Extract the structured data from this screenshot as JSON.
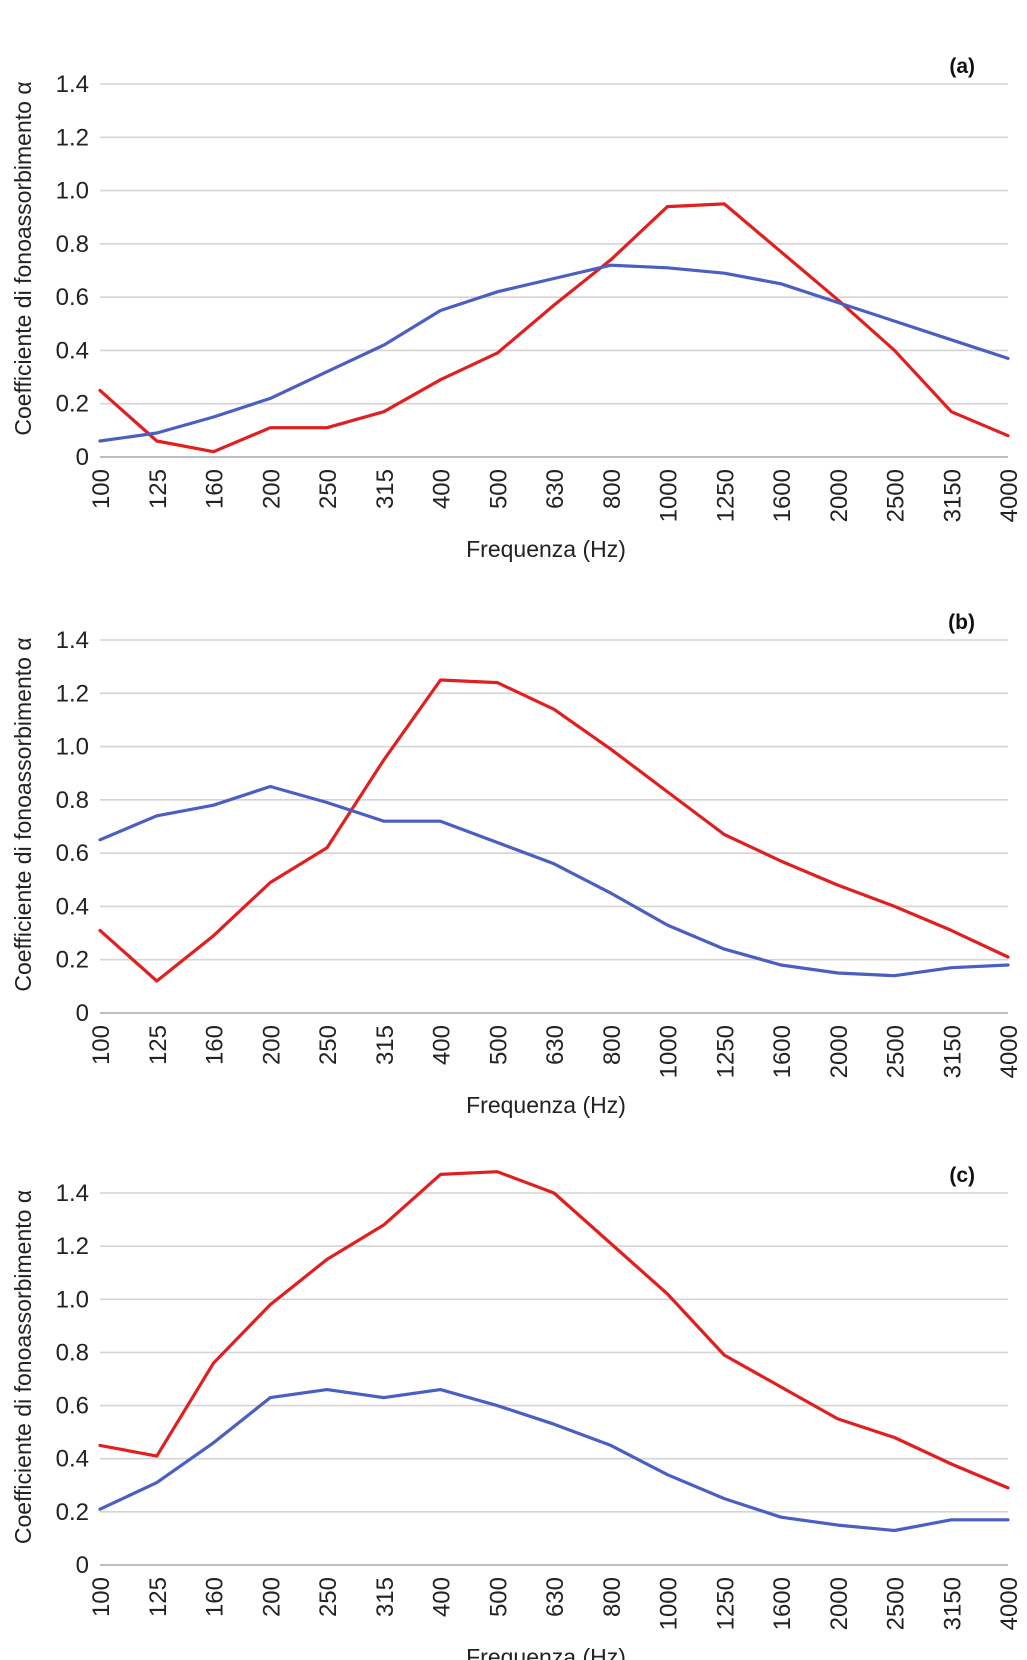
{
  "chart_data": [
    {
      "type": "line",
      "panel_label": "(a)",
      "xlabel": "Frequenza (Hz)",
      "ylabel": "Coefficiente di fonoassorbimento α",
      "categories": [
        "100",
        "125",
        "160",
        "200",
        "250",
        "315",
        "400",
        "500",
        "630",
        "800",
        "1000",
        "1250",
        "1600",
        "2000",
        "2500",
        "3150",
        "4000"
      ],
      "ylim": [
        0,
        1.4
      ],
      "yticks": [
        "0",
        "0.2",
        "0.4",
        "0.6",
        "0.8",
        "1.0",
        "1.2",
        "1.4"
      ],
      "grid": true,
      "series": [
        {
          "color": "#e02020",
          "values": [
            0.25,
            0.06,
            0.02,
            0.11,
            0.11,
            0.17,
            0.29,
            0.39,
            0.57,
            0.74,
            0.94,
            0.95,
            0.77,
            0.59,
            0.4,
            0.17,
            0.08
          ]
        },
        {
          "color": "#4a5fc1",
          "values": [
            0.06,
            0.09,
            0.15,
            0.22,
            0.32,
            0.42,
            0.55,
            0.62,
            0.67,
            0.72,
            0.71,
            0.69,
            0.65,
            0.58,
            0.51,
            0.44,
            0.37
          ]
        }
      ]
    },
    {
      "type": "line",
      "panel_label": "(b)",
      "xlabel": "Frequenza (Hz)",
      "ylabel": "Coefficiente di fonoassorbimento α",
      "categories": [
        "100",
        "125",
        "160",
        "200",
        "250",
        "315",
        "400",
        "500",
        "630",
        "800",
        "1000",
        "1250",
        "1600",
        "2000",
        "2500",
        "3150",
        "4000"
      ],
      "ylim": [
        0,
        1.4
      ],
      "yticks": [
        "0",
        "0.2",
        "0.4",
        "0.6",
        "0.8",
        "1.0",
        "1.2",
        "1.4"
      ],
      "grid": true,
      "series": [
        {
          "color": "#e02020",
          "values": [
            0.31,
            0.12,
            0.29,
            0.49,
            0.62,
            0.95,
            1.25,
            1.24,
            1.14,
            0.99,
            0.83,
            0.67,
            0.57,
            0.48,
            0.4,
            0.31,
            0.21
          ]
        },
        {
          "color": "#4a5fc1",
          "values": [
            0.65,
            0.74,
            0.78,
            0.85,
            0.79,
            0.72,
            0.72,
            0.64,
            0.56,
            0.45,
            0.33,
            0.24,
            0.18,
            0.15,
            0.14,
            0.17,
            0.18
          ]
        }
      ]
    },
    {
      "type": "line",
      "panel_label": "(c)",
      "xlabel": "Frequenza (Hz)",
      "ylabel": "Coefficiente di fonoassorbimento α",
      "categories": [
        "100",
        "125",
        "160",
        "200",
        "250",
        "315",
        "400",
        "500",
        "630",
        "800",
        "1000",
        "1250",
        "1600",
        "2000",
        "2500",
        "3150",
        "4000"
      ],
      "ylim": [
        0,
        1.4
      ],
      "yticks": [
        "0",
        "0.2",
        "0.4",
        "0.6",
        "0.8",
        "1.0",
        "1.2",
        "1.4"
      ],
      "grid": true,
      "series": [
        {
          "color": "#e02020",
          "values": [
            0.45,
            0.41,
            0.76,
            0.98,
            1.15,
            1.28,
            1.47,
            1.48,
            1.4,
            1.21,
            1.02,
            0.79,
            0.67,
            0.55,
            0.48,
            0.38,
            0.29
          ]
        },
        {
          "color": "#4a5fc1",
          "values": [
            0.21,
            0.31,
            0.46,
            0.63,
            0.66,
            0.63,
            0.66,
            0.6,
            0.53,
            0.45,
            0.34,
            0.25,
            0.18,
            0.15,
            0.13,
            0.17,
            0.17
          ]
        }
      ]
    }
  ]
}
